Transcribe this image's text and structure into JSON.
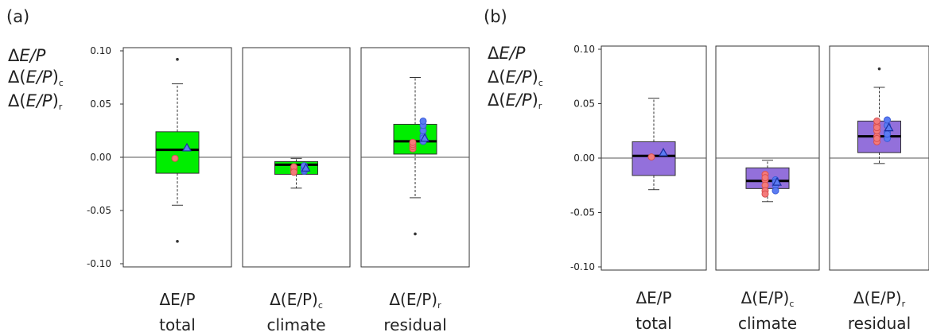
{
  "chart_data": [
    {
      "type": "box",
      "panel_label": "(a)",
      "ylabel_lines": [
        {
          "prefix": "Δ",
          "italic": "E/P",
          "suffix": "",
          "sub": ""
        },
        {
          "prefix": "Δ(",
          "italic": "E/P",
          "suffix": ")",
          "sub": "c"
        },
        {
          "prefix": "Δ(",
          "italic": "E/P",
          "suffix": ")",
          "sub": "r"
        }
      ],
      "ylim": [
        -0.1,
        0.1
      ],
      "yticks": [
        -0.1,
        -0.05,
        0.0,
        0.05,
        0.1
      ],
      "ytick_labels": [
        "-0.10",
        "-0.05",
        "0.00",
        "0.05",
        "0.10"
      ],
      "box_color": "#00ee00",
      "categories": [
        {
          "label_main": "ΔE/P",
          "label_sub": "",
          "label_second": "total",
          "whisker_low": -0.045,
          "q1": -0.015,
          "median": 0.007,
          "q3": 0.024,
          "whisker_high": 0.069,
          "outliers": [
            0.092,
            -0.079
          ],
          "red_points": [
            -0.001
          ],
          "blue_points": [],
          "triangle": 0.009
        },
        {
          "label_main": "Δ(E/P)",
          "label_sub": "c",
          "label_second": "climate",
          "whisker_low": -0.029,
          "q1": -0.016,
          "median": -0.007,
          "q3": -0.004,
          "whisker_high": -0.001,
          "outliers": [],
          "red_points": [
            -0.012,
            -0.011,
            -0.013,
            -0.009,
            -0.014
          ],
          "blue_points": [
            -0.013,
            -0.01,
            -0.012,
            -0.008
          ],
          "triangle": -0.01
        },
        {
          "label_main": "Δ(E/P)",
          "label_sub": "r",
          "label_second": "residual",
          "whisker_low": -0.038,
          "q1": 0.003,
          "median": 0.015,
          "q3": 0.031,
          "whisker_high": 0.075,
          "outliers": [
            -0.072
          ],
          "red_points": [
            0.008,
            0.01,
            0.012,
            0.014
          ],
          "blue_points": [
            0.015,
            0.02,
            0.025,
            0.03,
            0.034,
            0.018
          ],
          "triangle": 0.018
        }
      ]
    },
    {
      "type": "box",
      "panel_label": "(b)",
      "ylabel_lines": [
        {
          "prefix": "Δ",
          "italic": "E/P",
          "suffix": "",
          "sub": ""
        },
        {
          "prefix": "Δ(",
          "italic": "E/P",
          "suffix": ")",
          "sub": "c"
        },
        {
          "prefix": "Δ(",
          "italic": "E/P",
          "suffix": ")",
          "sub": "r"
        }
      ],
      "ylim": [
        -0.1,
        0.1
      ],
      "yticks": [
        -0.1,
        -0.05,
        0.0,
        0.05,
        0.1
      ],
      "ytick_labels": [
        "-0.10",
        "-0.05",
        "0.00",
        "0.05",
        "0.10"
      ],
      "box_color": "#9370db",
      "categories": [
        {
          "label_main": "ΔE/P",
          "label_sub": "",
          "label_second": "total",
          "whisker_low": -0.029,
          "q1": -0.016,
          "median": 0.002,
          "q3": 0.015,
          "whisker_high": 0.055,
          "outliers": [],
          "red_points": [
            0.001
          ],
          "blue_points": [],
          "triangle": 0.005
        },
        {
          "label_main": "Δ(E/P)",
          "label_sub": "c",
          "label_second": "climate",
          "whisker_low": -0.04,
          "q1": -0.028,
          "median": -0.021,
          "q3": -0.009,
          "whisker_high": -0.002,
          "outliers": [],
          "red_points": [
            -0.015,
            -0.02,
            -0.025,
            -0.03,
            -0.033,
            -0.018
          ],
          "blue_points": [
            -0.02,
            -0.025,
            -0.03,
            -0.022
          ],
          "triangle": -0.022
        },
        {
          "label_main": "Δ(E/P)",
          "label_sub": "r",
          "label_second": "residual",
          "whisker_low": -0.005,
          "q1": 0.005,
          "median": 0.02,
          "q3": 0.034,
          "whisker_high": 0.065,
          "outliers": [
            0.082
          ],
          "red_points": [
            0.015,
            0.02,
            0.025,
            0.03,
            0.034,
            0.018,
            0.028
          ],
          "blue_points": [
            0.018,
            0.024,
            0.03,
            0.035,
            0.022
          ],
          "triangle": 0.028
        }
      ]
    }
  ]
}
